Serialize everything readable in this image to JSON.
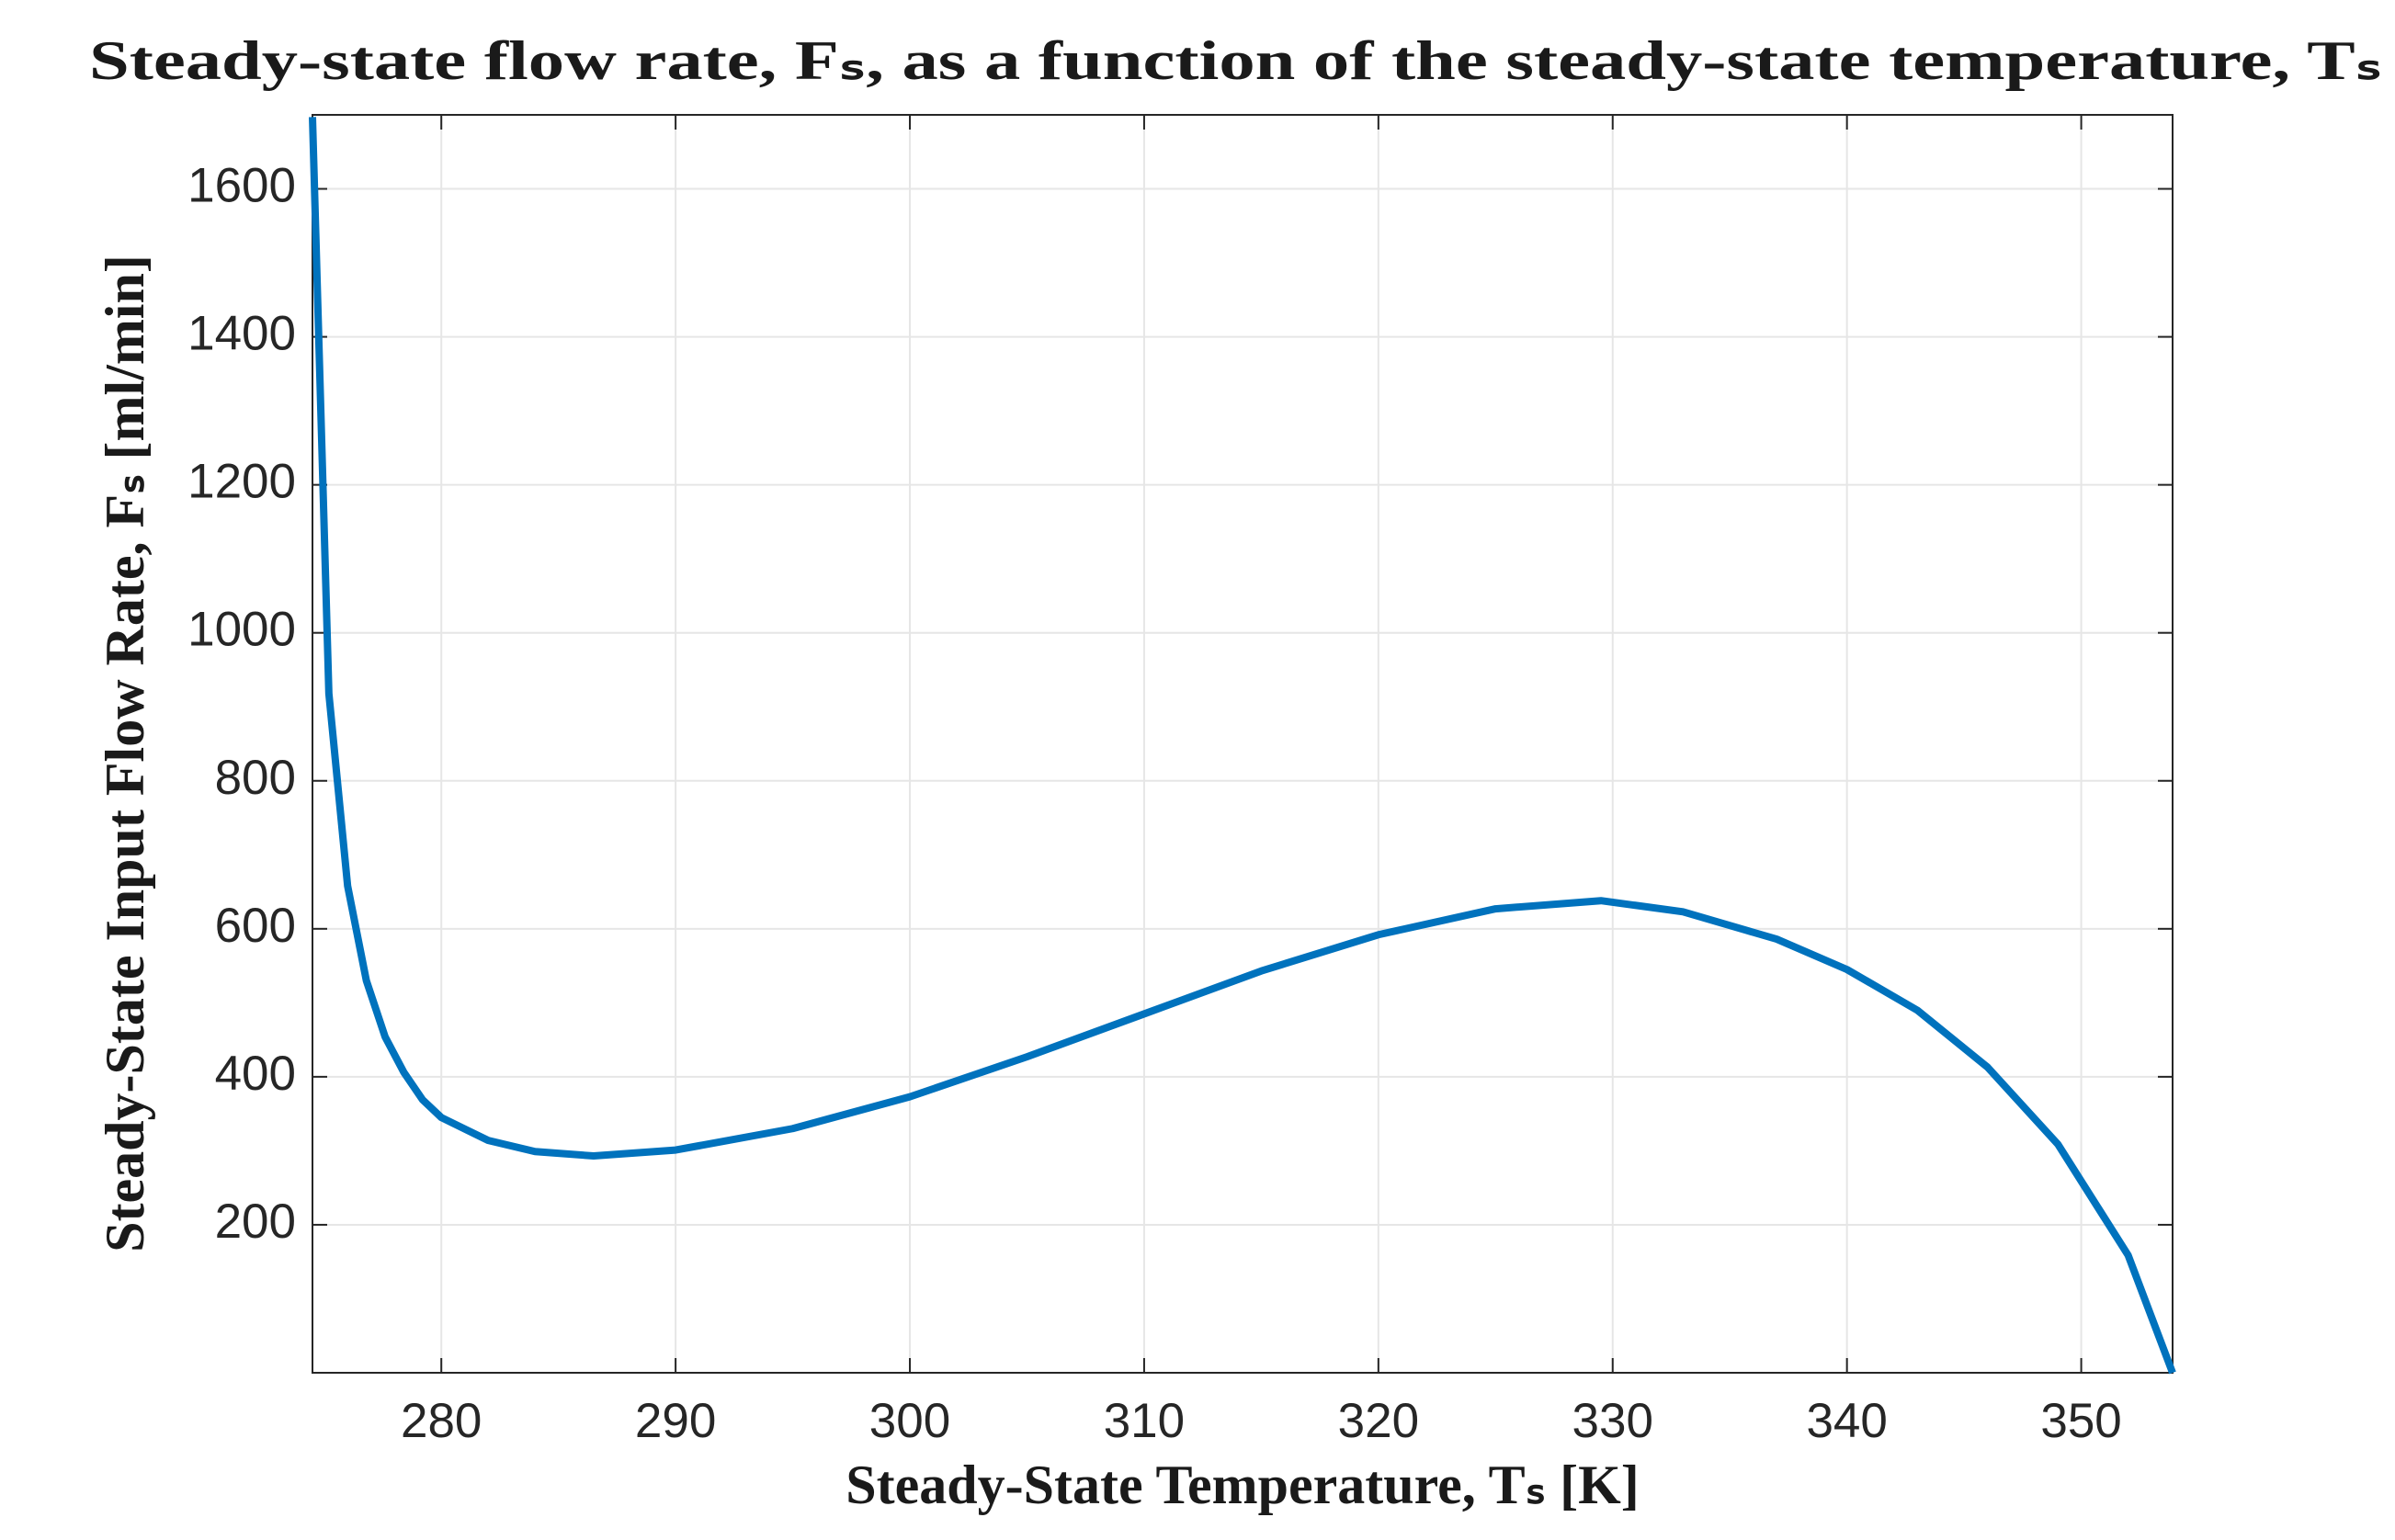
{
  "chart_data": {
    "type": "line",
    "title": "Steady-state flow rate, Fₛ, as a function of the steady-state temperature, Tₛ",
    "xlabel": "Steady-State Temperature, Tₛ [K]",
    "ylabel": "Steady-State Input Flow Rate, Fₛ [ml/min]",
    "x": [
      274.5,
      275.2,
      276,
      276.8,
      277.6,
      278.4,
      279.2,
      280,
      282,
      284,
      286.5,
      290,
      295,
      300,
      305,
      310,
      315,
      320,
      325,
      329.5,
      333,
      337,
      340,
      343,
      346,
      349,
      352,
      353.9
    ],
    "series": [
      {
        "name": "Fs",
        "color": "#0072bd",
        "values": [
          1697,
          918,
          658,
          530,
          454,
          406,
          369,
          345,
          314,
          299,
          293,
          301,
          330,
          373,
          427,
          485,
          543,
          592,
          627,
          638,
          623,
          586,
          545,
          490,
          413,
          309,
          159,
          0
        ]
      }
    ],
    "xlim": [
      274.5,
      353.9
    ],
    "xticks": [
      280,
      290,
      300,
      310,
      320,
      330,
      340,
      350
    ],
    "ylim": [
      0,
      1700
    ],
    "yticks": [
      200,
      400,
      600,
      800,
      1000,
      1200,
      1400,
      1600
    ],
    "grid": true
  }
}
